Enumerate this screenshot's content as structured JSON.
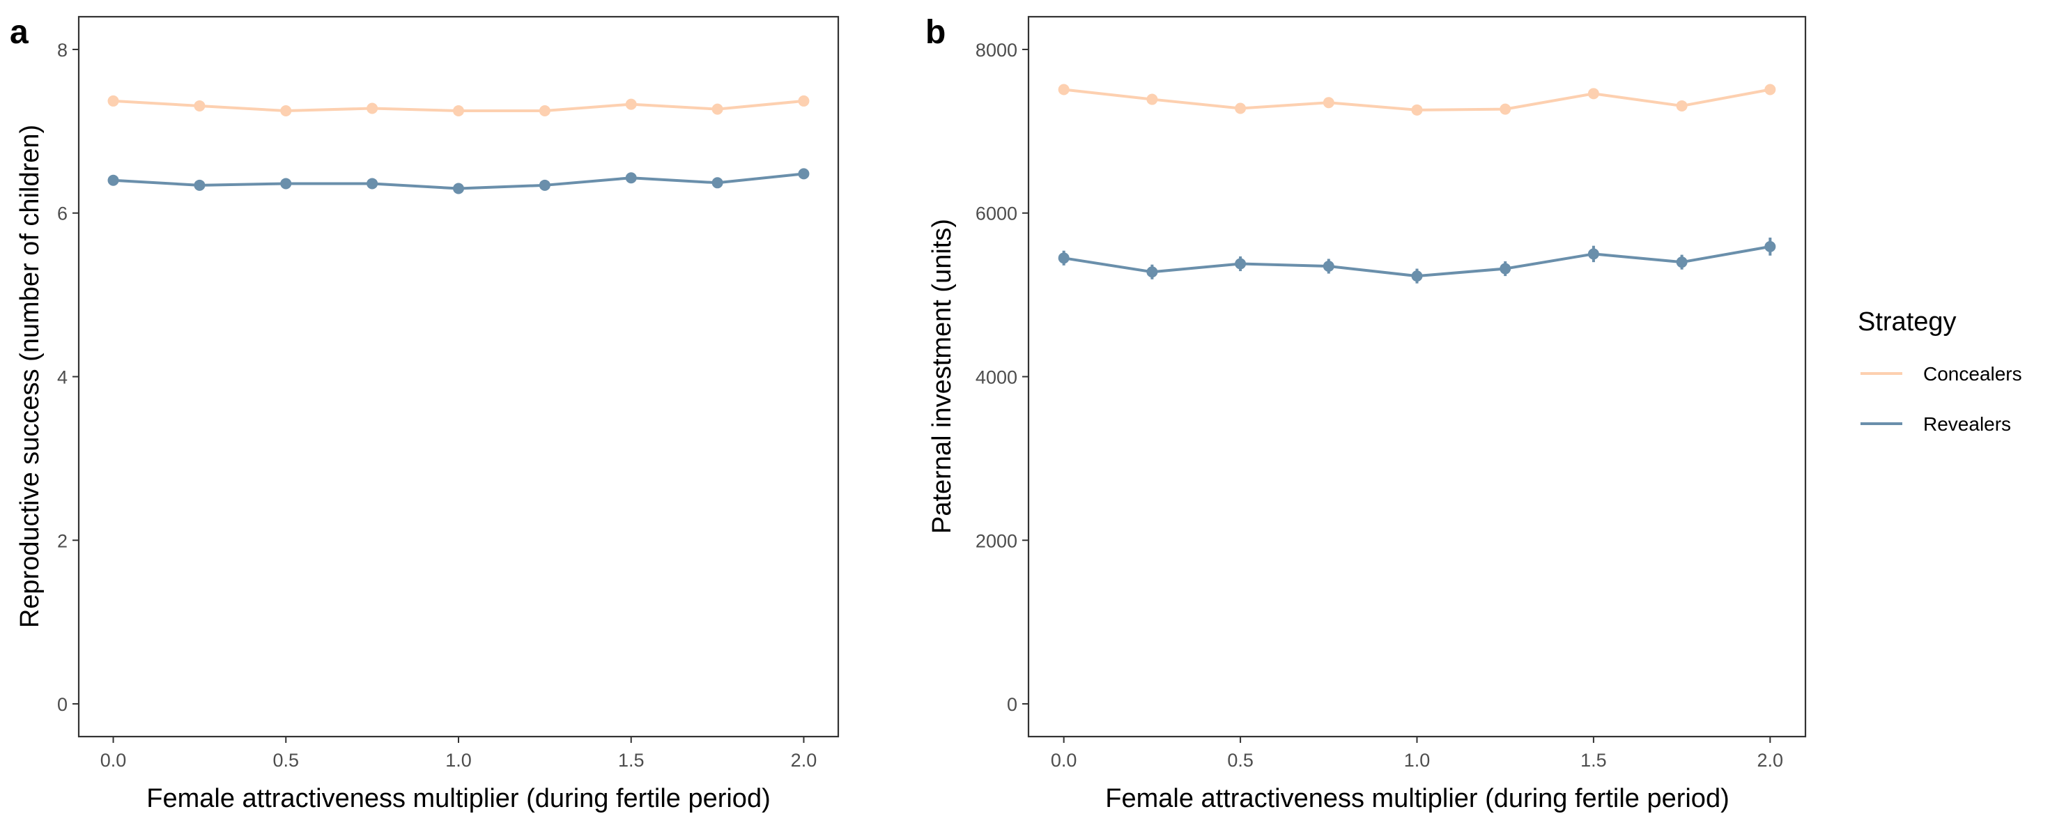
{
  "colors": {
    "concealers": "#fdd0b0",
    "revealers": "#6a8fab",
    "frame": "#333333",
    "tick_text": "#4d4d4d"
  },
  "legend": {
    "title": "Strategy",
    "items": [
      {
        "key": "concealers",
        "label": "Concealers"
      },
      {
        "key": "revealers",
        "label": "Revealers"
      }
    ],
    "position": "right"
  },
  "chart_data": [
    {
      "panel_label": "a",
      "type": "line",
      "title": "",
      "xlabel": "Female attractiveness multiplier (during fertile period)",
      "ylabel": "Reproductive success (number of children)",
      "xlim": [
        -0.1,
        2.1
      ],
      "ylim": [
        -0.4,
        8.4
      ],
      "xticks": [
        "0.0",
        "0.5",
        "1.0",
        "1.5",
        "2.0"
      ],
      "yticks": [
        "0",
        "2",
        "4",
        "6",
        "8"
      ],
      "x": [
        0.0,
        0.25,
        0.5,
        0.75,
        1.0,
        1.25,
        1.5,
        1.75,
        2.0
      ],
      "series": [
        {
          "name": "Concealers",
          "key": "concealers",
          "values": [
            7.37,
            7.31,
            7.25,
            7.28,
            7.25,
            7.25,
            7.33,
            7.27,
            7.37
          ],
          "error": [
            0.03,
            0.03,
            0.03,
            0.03,
            0.03,
            0.03,
            0.03,
            0.03,
            0.03
          ]
        },
        {
          "name": "Revealers",
          "key": "revealers",
          "values": [
            6.4,
            6.34,
            6.36,
            6.36,
            6.3,
            6.34,
            6.43,
            6.37,
            6.48
          ],
          "error": [
            0.04,
            0.04,
            0.04,
            0.04,
            0.04,
            0.04,
            0.04,
            0.04,
            0.04
          ]
        }
      ],
      "grid": false
    },
    {
      "panel_label": "b",
      "type": "line",
      "title": "",
      "xlabel": "Female attractiveness multiplier (during fertile period)",
      "ylabel": "Paternal investment (units)",
      "xlim": [
        -0.1,
        2.1
      ],
      "ylim": [
        -400,
        8400
      ],
      "xticks": [
        "0.0",
        "0.5",
        "1.0",
        "1.5",
        "2.0"
      ],
      "yticks": [
        "0",
        "2000",
        "4000",
        "6000",
        "8000"
      ],
      "x": [
        0.0,
        0.25,
        0.5,
        0.75,
        1.0,
        1.25,
        1.5,
        1.75,
        2.0
      ],
      "series": [
        {
          "name": "Concealers",
          "key": "concealers",
          "values": [
            7510,
            7390,
            7280,
            7350,
            7260,
            7270,
            7460,
            7310,
            7510
          ],
          "error": [
            30,
            30,
            30,
            30,
            30,
            30,
            40,
            30,
            30
          ]
        },
        {
          "name": "Revealers",
          "key": "revealers",
          "values": [
            5450,
            5280,
            5380,
            5350,
            5230,
            5320,
            5500,
            5400,
            5590
          ],
          "error": [
            90,
            90,
            90,
            90,
            90,
            90,
            100,
            90,
            110
          ]
        }
      ],
      "grid": false
    }
  ]
}
